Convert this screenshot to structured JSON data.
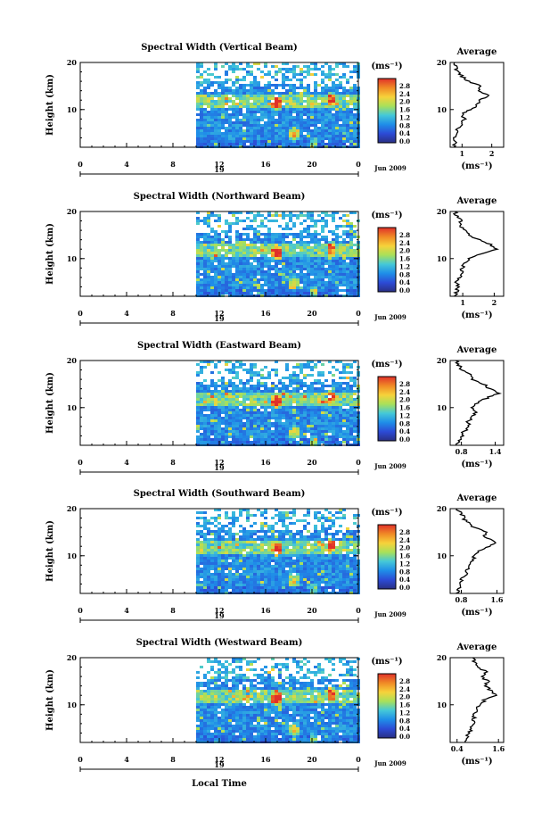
{
  "x_axis_title": "Local Time",
  "colorbar": {
    "unit_label": "(ms⁻¹)",
    "ticks": [
      "2.8",
      "2.4",
      "2.0",
      "1.6",
      "1.2",
      "0.8",
      "0.4",
      "0.0"
    ],
    "stops": [
      "#e0302a",
      "#f08a26",
      "#f7d23a",
      "#a8e05a",
      "#44c8d8",
      "#1f8ee8",
      "#2c4bd6",
      "#2a2f84"
    ]
  },
  "panels": [
    {
      "title": "Spectral Width (Vertical Beam)",
      "x_ticks": [
        "0",
        "4",
        "8",
        "12",
        "16",
        "20",
        "0"
      ],
      "day_label": "19",
      "date_label": "Jun 2009",
      "avg_title": "Average",
      "avg_xticks": [
        "1",
        "2"
      ],
      "avg_xlabel": "(ms⁻¹)"
    },
    {
      "title": "Spectral Width (Northward Beam)",
      "x_ticks": [
        "0",
        "4",
        "8",
        "12",
        "16",
        "20",
        "0"
      ],
      "day_label": "19",
      "date_label": "Jun 2009",
      "avg_title": "Average",
      "avg_xticks": [
        "1",
        "2"
      ],
      "avg_xlabel": "(ms⁻¹)"
    },
    {
      "title": "Spectral Width (Eastward Beam)",
      "x_ticks": [
        "0",
        "4",
        "8",
        "12",
        "16",
        "20",
        "0"
      ],
      "day_label": "19",
      "date_label": "Jun 2009",
      "avg_title": "Average",
      "avg_xticks": [
        "0.8",
        "1.4"
      ],
      "avg_xlabel": "(ms⁻¹)"
    },
    {
      "title": "Spectral Width (Southward Beam)",
      "x_ticks": [
        "0",
        "4",
        "8",
        "12",
        "16",
        "20",
        "0"
      ],
      "day_label": "19",
      "date_label": "Jun 2009",
      "avg_title": "Average",
      "avg_xticks": [
        "0.8",
        "1.6"
      ],
      "avg_xlabel": "(ms⁻¹)"
    },
    {
      "title": "Spectral Width (Westward Beam)",
      "x_ticks": [
        "0",
        "4",
        "8",
        "12",
        "16",
        "20",
        "0"
      ],
      "day_label": "19",
      "date_label": "Jun 2009",
      "avg_title": "Average",
      "avg_xticks": [
        "0.4",
        "1.6"
      ],
      "avg_xlabel": "(ms⁻¹)"
    }
  ],
  "chart_data": [
    {
      "type": "heatmap",
      "title": "Spectral Width (Vertical Beam)",
      "ylabel": "Height (km)",
      "xlabel": "Local Time",
      "xlim": [
        0,
        24
      ],
      "ylim": [
        2,
        20
      ],
      "y_ticks": [
        10,
        20
      ],
      "data_start_hour": 10,
      "color_range": [
        0.0,
        2.8
      ],
      "average_profile": {
        "x_ticks": [
          1,
          2
        ],
        "xlim": [
          0.6,
          2.4
        ],
        "height_km": [
          2,
          3,
          4,
          5,
          6,
          7,
          8,
          9,
          10,
          11,
          12,
          13,
          14,
          15,
          16,
          17,
          18,
          19,
          20
        ],
        "width": [
          0.7,
          0.8,
          0.75,
          0.9,
          0.85,
          1.0,
          1.1,
          1.0,
          1.3,
          1.5,
          1.6,
          1.9,
          1.5,
          1.7,
          1.2,
          1.0,
          0.85,
          0.8,
          0.75
        ]
      }
    },
    {
      "type": "heatmap",
      "title": "Spectral Width (Northward Beam)",
      "ylabel": "Height (km)",
      "xlabel": "Local Time",
      "xlim": [
        0,
        24
      ],
      "ylim": [
        2,
        20
      ],
      "y_ticks": [
        10,
        20
      ],
      "data_start_hour": 10,
      "color_range": [
        0.0,
        2.8
      ],
      "average_profile": {
        "x_ticks": [
          1,
          2
        ],
        "xlim": [
          0.6,
          2.3
        ],
        "height_km": [
          2,
          3,
          4,
          5,
          6,
          7,
          8,
          9,
          10,
          11,
          12,
          13,
          14,
          15,
          16,
          17,
          18,
          19,
          20
        ],
        "width": [
          0.75,
          0.8,
          0.85,
          0.8,
          0.9,
          0.95,
          1.0,
          1.05,
          1.2,
          1.6,
          2.1,
          1.9,
          1.5,
          1.2,
          1.1,
          0.9,
          0.95,
          0.8,
          0.75
        ]
      }
    },
    {
      "type": "heatmap",
      "title": "Spectral Width (Eastward Beam)",
      "ylabel": "Height (km)",
      "xlabel": "Local Time",
      "xlim": [
        0,
        24
      ],
      "ylim": [
        2,
        20
      ],
      "y_ticks": [
        10,
        20
      ],
      "data_start_hour": 10,
      "color_range": [
        0.0,
        2.8
      ],
      "average_profile": {
        "x_ticks": [
          0.8,
          1.4
        ],
        "xlim": [
          0.6,
          1.55
        ],
        "height_km": [
          2,
          3,
          4,
          5,
          6,
          7,
          8,
          9,
          10,
          11,
          12,
          13,
          14,
          15,
          16,
          17,
          18,
          19,
          20
        ],
        "width": [
          0.7,
          0.75,
          0.8,
          0.85,
          0.95,
          0.9,
          1.0,
          1.05,
          1.0,
          1.1,
          1.25,
          1.45,
          1.3,
          1.2,
          1.0,
          0.95,
          0.8,
          0.75,
          0.7
        ]
      }
    },
    {
      "type": "heatmap",
      "title": "Spectral Width (Southward Beam)",
      "ylabel": "Height (km)",
      "xlabel": "Local Time",
      "xlim": [
        0,
        24
      ],
      "ylim": [
        2,
        20
      ],
      "y_ticks": [
        10,
        20
      ],
      "data_start_hour": 10,
      "color_range": [
        0.0,
        2.8
      ],
      "average_profile": {
        "x_ticks": [
          0.8,
          1.6
        ],
        "xlim": [
          0.55,
          1.75
        ],
        "height_km": [
          2,
          3,
          4,
          5,
          6,
          7,
          8,
          9,
          10,
          11,
          12,
          13,
          14,
          15,
          16,
          17,
          18,
          19,
          20
        ],
        "width": [
          0.7,
          0.75,
          0.8,
          0.8,
          0.9,
          0.95,
          1.0,
          1.05,
          1.1,
          1.2,
          1.45,
          1.55,
          1.3,
          1.35,
          1.1,
          0.95,
          0.85,
          0.8,
          0.7
        ]
      }
    },
    {
      "type": "heatmap",
      "title": "Spectral Width (Westward Beam)",
      "ylabel": "Height (km)",
      "xlabel": "Local Time",
      "xlim": [
        0,
        24
      ],
      "ylim": [
        2,
        20
      ],
      "y_ticks": [
        10,
        20
      ],
      "data_start_hour": 10,
      "color_range": [
        0.0,
        2.8
      ],
      "average_profile": {
        "x_ticks": [
          0.4,
          1.6
        ],
        "xlim": [
          0.2,
          1.75
        ],
        "height_km": [
          2,
          3,
          4,
          5,
          6,
          7,
          8,
          9,
          10,
          11,
          12,
          13,
          14,
          15,
          16,
          17,
          18,
          19,
          20
        ],
        "width": [
          0.7,
          0.65,
          0.75,
          0.8,
          0.85,
          0.9,
          0.9,
          1.0,
          1.05,
          1.2,
          1.5,
          1.4,
          1.2,
          1.3,
          1.1,
          1.25,
          1.0,
          0.9,
          0.85
        ]
      }
    }
  ]
}
